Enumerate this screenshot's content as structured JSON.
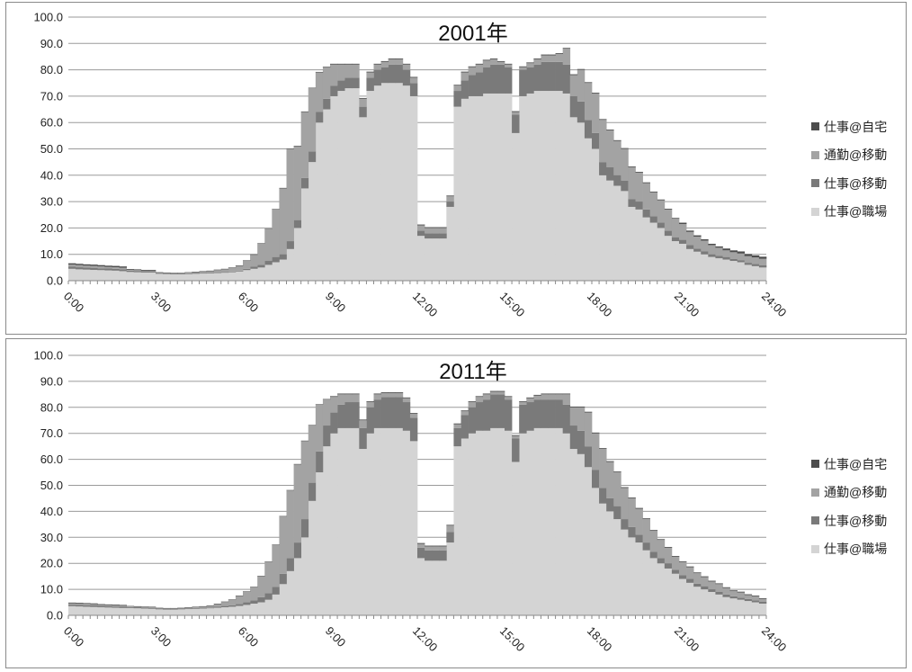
{
  "legend": [
    {
      "label": "仕事@自宅",
      "color": "#4d4d4d"
    },
    {
      "label": "通勤@移動",
      "color": "#a3a3a3"
    },
    {
      "label": "仕事@移動",
      "color": "#7a7a7a"
    },
    {
      "label": "仕事@職場",
      "color": "#d4d4d4"
    }
  ],
  "chart_data": [
    {
      "type": "area",
      "title": "2001年",
      "ylim": [
        0,
        100
      ],
      "yticks": [
        "0.0",
        "10.0",
        "20.0",
        "30.0",
        "40.0",
        "50.0",
        "60.0",
        "70.0",
        "80.0",
        "90.0",
        "100.0"
      ],
      "xticks": [
        "0:00",
        "3:00",
        "6:00",
        "9:00",
        "12:00",
        "15:00",
        "18:00",
        "21:00",
        "24:00"
      ],
      "x": [
        "0:00",
        "0:15",
        "0:30",
        "0:45",
        "1:00",
        "1:15",
        "1:30",
        "1:45",
        "2:00",
        "2:15",
        "2:30",
        "2:45",
        "3:00",
        "3:15",
        "3:30",
        "3:45",
        "4:00",
        "4:15",
        "4:30",
        "4:45",
        "5:00",
        "5:15",
        "5:30",
        "5:45",
        "6:00",
        "6:15",
        "6:30",
        "6:45",
        "7:00",
        "7:15",
        "7:30",
        "7:45",
        "8:00",
        "8:15",
        "8:30",
        "8:45",
        "9:00",
        "9:15",
        "9:30",
        "9:45",
        "10:00",
        "10:15",
        "10:30",
        "10:45",
        "11:00",
        "11:15",
        "11:30",
        "11:45",
        "12:00",
        "12:15",
        "12:30",
        "12:45",
        "13:00",
        "13:15",
        "13:30",
        "13:45",
        "14:00",
        "14:15",
        "14:30",
        "14:45",
        "15:00",
        "15:15",
        "15:30",
        "15:45",
        "16:00",
        "16:15",
        "16:30",
        "16:45",
        "17:00",
        "17:15",
        "17:30",
        "17:45",
        "18:00",
        "18:15",
        "18:30",
        "18:45",
        "19:00",
        "19:15",
        "19:30",
        "19:45",
        "20:00",
        "20:15",
        "20:30",
        "20:45",
        "21:00",
        "21:15",
        "21:30",
        "21:45",
        "22:00",
        "22:15",
        "22:30",
        "22:45",
        "23:00",
        "23:15",
        "23:30",
        "23:45"
      ],
      "series": [
        {
          "name": "仕事@職場",
          "color": "#d4d4d4",
          "values": [
            4.5,
            4.3,
            4.2,
            4.1,
            4,
            3.9,
            3.8,
            3.6,
            3.3,
            3.2,
            3.1,
            3.1,
            2.6,
            2.5,
            2.4,
            2.4,
            2.5,
            2.6,
            2.7,
            2.8,
            2.9,
            3,
            3.2,
            3.5,
            4,
            4.5,
            5,
            6,
            7,
            8,
            12,
            20,
            35,
            45,
            60,
            65,
            70,
            72,
            73,
            73,
            62,
            72,
            74,
            75,
            75,
            75,
            74,
            70,
            17,
            16,
            16,
            16,
            28,
            66,
            69,
            70,
            70,
            71,
            71,
            71,
            71,
            56,
            70,
            71,
            72,
            72,
            72,
            72,
            71,
            62,
            60,
            54,
            50,
            40,
            38,
            36,
            34,
            28,
            27,
            24,
            22,
            20,
            17,
            15,
            14,
            12,
            11,
            10,
            9,
            8.5,
            8,
            7.5,
            7,
            6,
            5.5,
            5
          ]
        },
        {
          "name": "仕事@移動",
          "color": "#7a7a7a",
          "values": [
            0.8,
            0.8,
            0.8,
            0.8,
            0.7,
            0.7,
            0.7,
            0.7,
            0.5,
            0.5,
            0.5,
            0.5,
            0.3,
            0.3,
            0.3,
            0.3,
            0.3,
            0.3,
            0.3,
            0.3,
            0.3,
            0.3,
            0.3,
            0.3,
            0.5,
            0.8,
            1,
            1.5,
            2,
            2,
            3,
            3,
            4,
            4,
            4,
            4,
            4,
            4,
            4,
            4,
            4,
            5,
            6,
            6,
            7,
            7,
            6,
            5,
            2,
            2,
            2,
            2,
            2,
            6,
            7,
            8,
            9,
            10,
            11,
            11,
            10,
            7,
            10,
            10,
            10,
            11,
            11,
            11,
            11,
            8,
            8,
            7,
            6,
            5,
            5,
            4,
            4,
            3,
            3,
            3,
            2.5,
            2,
            2,
            1.5,
            1.5,
            1.5,
            1.2,
            1.2,
            1,
            1,
            1,
            0.8,
            0.8,
            0.8,
            0.8,
            0.8
          ]
        },
        {
          "name": "通勤@移動",
          "color": "#a3a3a3",
          "values": [
            0.8,
            0.8,
            0.7,
            0.7,
            0.7,
            0.6,
            0.6,
            0.6,
            0.3,
            0.3,
            0.2,
            0.2,
            0.1,
            0.1,
            0.1,
            0.1,
            0.2,
            0.3,
            0.4,
            0.5,
            0.8,
            1,
            1.3,
            1.8,
            3,
            4.5,
            8,
            12,
            18,
            25,
            35,
            28,
            25,
            24,
            15,
            12,
            8,
            6,
            5,
            5,
            3,
            2,
            2,
            2,
            2,
            2,
            2,
            2,
            2,
            2,
            2,
            2,
            2,
            2,
            3,
            3,
            3,
            2.5,
            2,
            1,
            1,
            1,
            1,
            1.5,
            2,
            2.5,
            2.5,
            3,
            6,
            8,
            12,
            14,
            15,
            16,
            14,
            13,
            12,
            12,
            11,
            10,
            9,
            8.5,
            8,
            7,
            6,
            5,
            4.5,
            4,
            3.5,
            3,
            2.5,
            2.5,
            2.5,
            2.5,
            2.5,
            2.5
          ]
        },
        {
          "name": "仕事@自宅",
          "color": "#4d4d4d",
          "values": [
            0.5,
            0.5,
            0.5,
            0.5,
            0.5,
            0.5,
            0.5,
            0.5,
            0.3,
            0.3,
            0.3,
            0.3,
            0.2,
            0.2,
            0.2,
            0.2,
            0.2,
            0.2,
            0.2,
            0.2,
            0.2,
            0.2,
            0.2,
            0.2,
            0.2,
            0.2,
            0.2,
            0.2,
            0.2,
            0.2,
            0.2,
            0.2,
            0.2,
            0.2,
            0.2,
            0.2,
            0.3,
            0.3,
            0.3,
            0.3,
            0.3,
            0.3,
            0.3,
            0.3,
            0.3,
            0.3,
            0.3,
            0.3,
            0.3,
            0.3,
            0.3,
            0.3,
            0.3,
            0.3,
            0.3,
            0.3,
            0.3,
            0.3,
            0.3,
            0.3,
            0.3,
            0.3,
            0.3,
            0.3,
            0.3,
            0.3,
            0.3,
            0.3,
            0.3,
            0.3,
            0.3,
            0.3,
            0.3,
            0.3,
            0.3,
            0.3,
            0.3,
            0.3,
            0.3,
            0.3,
            0.3,
            0.3,
            0.3,
            0.3,
            0.5,
            0.5,
            0.5,
            0.5,
            0.5,
            0.5,
            0.7,
            0.7,
            0.8,
            0.8,
            0.8,
            0.8
          ]
        }
      ]
    },
    {
      "type": "area",
      "title": "2011年",
      "ylim": [
        0,
        100
      ],
      "yticks": [
        "0.0",
        "10.0",
        "20.0",
        "30.0",
        "40.0",
        "50.0",
        "60.0",
        "70.0",
        "80.0",
        "90.0",
        "100.0"
      ],
      "xticks": [
        "0:00",
        "3:00",
        "6:00",
        "9:00",
        "12:00",
        "15:00",
        "18:00",
        "21:00",
        "24:00"
      ],
      "x": [
        "0:00",
        "0:15",
        "0:30",
        "0:45",
        "1:00",
        "1:15",
        "1:30",
        "1:45",
        "2:00",
        "2:15",
        "2:30",
        "2:45",
        "3:00",
        "3:15",
        "3:30",
        "3:45",
        "4:00",
        "4:15",
        "4:30",
        "4:45",
        "5:00",
        "5:15",
        "5:30",
        "5:45",
        "6:00",
        "6:15",
        "6:30",
        "6:45",
        "7:00",
        "7:15",
        "7:30",
        "7:45",
        "8:00",
        "8:15",
        "8:30",
        "8:45",
        "9:00",
        "9:15",
        "9:30",
        "9:45",
        "10:00",
        "10:15",
        "10:30",
        "10:45",
        "11:00",
        "11:15",
        "11:30",
        "11:45",
        "12:00",
        "12:15",
        "12:30",
        "12:45",
        "13:00",
        "13:15",
        "13:30",
        "13:45",
        "14:00",
        "14:15",
        "14:30",
        "14:45",
        "15:00",
        "15:15",
        "15:30",
        "15:45",
        "16:00",
        "16:15",
        "16:30",
        "16:45",
        "17:00",
        "17:15",
        "17:30",
        "17:45",
        "18:00",
        "18:15",
        "18:30",
        "18:45",
        "19:00",
        "19:15",
        "19:30",
        "19:45",
        "20:00",
        "20:15",
        "20:30",
        "20:45",
        "21:00",
        "21:15",
        "21:30",
        "21:45",
        "22:00",
        "22:15",
        "22:30",
        "22:45",
        "23:00",
        "23:15",
        "23:30",
        "23:45"
      ],
      "series": [
        {
          "name": "仕事@職場",
          "color": "#d4d4d4",
          "values": [
            3.5,
            3.4,
            3.3,
            3.2,
            3.1,
            3,
            2.9,
            2.8,
            2.8,
            2.7,
            2.6,
            2.5,
            2.3,
            2.2,
            2.2,
            2.3,
            2.4,
            2.5,
            2.6,
            2.7,
            2.9,
            3.1,
            3.3,
            3.6,
            4,
            4.5,
            5,
            6,
            8,
            12,
            17,
            22,
            30,
            44,
            55,
            65,
            70,
            72,
            72,
            72,
            64,
            70,
            72,
            72,
            72,
            72,
            71,
            67,
            22,
            21,
            21,
            21,
            28,
            65,
            68,
            70,
            71,
            71,
            72,
            72,
            71,
            59,
            70,
            71,
            72,
            72,
            72,
            72,
            70,
            64,
            62,
            57,
            49,
            43,
            40,
            37,
            33,
            30,
            28,
            25,
            22,
            20,
            18,
            16,
            14,
            12.5,
            11,
            10,
            9,
            8,
            7,
            6.5,
            6,
            5.5,
            5,
            4.5
          ]
        },
        {
          "name": "仕事@移動",
          "color": "#7a7a7a",
          "values": [
            0.6,
            0.6,
            0.6,
            0.6,
            0.5,
            0.5,
            0.5,
            0.5,
            0.4,
            0.4,
            0.4,
            0.4,
            0.3,
            0.3,
            0.3,
            0.3,
            0.3,
            0.3,
            0.3,
            0.3,
            0.4,
            0.5,
            0.6,
            0.8,
            1,
            1.3,
            2,
            2.5,
            3,
            4,
            5,
            6,
            7,
            7,
            8,
            8,
            8,
            9,
            10,
            10,
            8,
            10,
            11,
            12,
            12,
            12,
            11,
            9,
            4,
            4,
            4,
            4,
            4,
            7,
            9,
            10,
            11,
            12,
            13,
            13,
            12,
            9,
            11,
            11,
            11,
            11,
            11,
            11,
            11,
            9,
            9,
            8,
            7,
            6,
            5,
            5,
            4,
            4,
            3,
            3,
            2.5,
            2,
            2,
            1.5,
            1.5,
            1.5,
            1.2,
            1.2,
            1,
            1,
            1,
            0.8,
            0.8,
            0.8,
            0.8,
            0.8
          ]
        },
        {
          "name": "通勤@移動",
          "color": "#a3a3a3",
          "values": [
            0.5,
            0.5,
            0.5,
            0.5,
            0.4,
            0.4,
            0.4,
            0.4,
            0.2,
            0.2,
            0.2,
            0.2,
            0.1,
            0.1,
            0.1,
            0.1,
            0.2,
            0.3,
            0.4,
            0.6,
            1,
            1.5,
            2,
            3,
            4,
            5,
            8,
            12,
            16,
            22,
            26,
            30,
            30,
            22,
            18,
            10,
            6,
            4,
            3,
            3,
            3,
            2,
            2,
            1.5,
            1.5,
            1.5,
            1.5,
            1.5,
            1.5,
            1.5,
            1.5,
            1.5,
            2.5,
            1.5,
            1.5,
            2,
            2,
            2,
            1,
            1,
            1,
            1,
            1,
            1.5,
            1.5,
            2,
            2,
            2,
            4,
            7,
            9,
            13,
            14,
            15,
            14,
            13,
            12,
            11,
            10,
            9,
            8,
            7,
            6,
            5,
            5,
            4.5,
            4,
            3.5,
            3,
            3,
            2.5,
            2,
            2,
            1.5,
            1.5,
            1
          ]
        },
        {
          "name": "仕事@自宅",
          "color": "#4d4d4d",
          "values": [
            0.3,
            0.3,
            0.3,
            0.3,
            0.3,
            0.3,
            0.3,
            0.3,
            0.2,
            0.2,
            0.2,
            0.2,
            0.2,
            0.2,
            0.2,
            0.2,
            0.2,
            0.2,
            0.2,
            0.2,
            0.2,
            0.2,
            0.2,
            0.2,
            0.2,
            0.2,
            0.2,
            0.2,
            0.2,
            0.2,
            0.2,
            0.2,
            0.2,
            0.2,
            0.2,
            0.2,
            0.3,
            0.3,
            0.3,
            0.3,
            0.3,
            0.3,
            0.3,
            0.3,
            0.3,
            0.3,
            0.3,
            0.3,
            0.3,
            0.3,
            0.3,
            0.3,
            0.3,
            0.3,
            0.3,
            0.3,
            0.3,
            0.3,
            0.3,
            0.3,
            0.3,
            0.3,
            0.3,
            0.3,
            0.3,
            0.3,
            0.3,
            0.3,
            0.3,
            0.3,
            0.3,
            0.3,
            0.3,
            0.3,
            0.3,
            0.3,
            0.3,
            0.3,
            0.3,
            0.3,
            0.3,
            0.3,
            0.3,
            0.3,
            0.3,
            0.3,
            0.3,
            0.3,
            0.3,
            0.3,
            0.3,
            0.3,
            0.3,
            0.3,
            0.3,
            0.3
          ]
        }
      ]
    }
  ]
}
